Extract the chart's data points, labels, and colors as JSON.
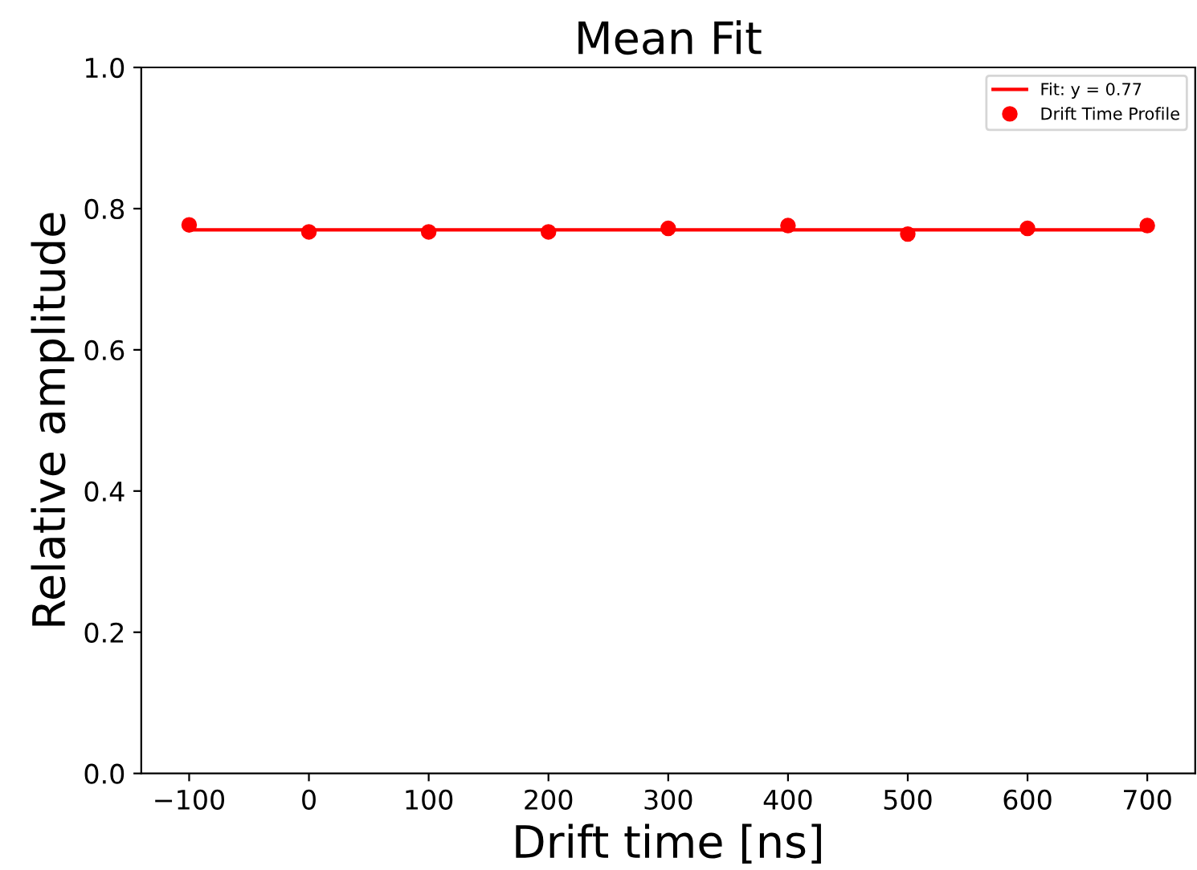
{
  "chart_data": {
    "type": "scatter",
    "title": "Mean Fit",
    "xlabel": "Drift time [ns]",
    "ylabel": "Relative amplitude",
    "xlim": [
      -140,
      740
    ],
    "xticks": [
      {
        "value": -100,
        "label": "−100"
      },
      0,
      100,
      200,
      300,
      400,
      500,
      600,
      700
    ],
    "ylim": [
      0,
      1
    ],
    "yticks": [
      {
        "value": 0,
        "label": "0.0"
      },
      0.2,
      0.4,
      0.6,
      0.8,
      {
        "value": 1,
        "label": "1.0"
      }
    ],
    "grid": false,
    "legend": "top right",
    "series": [
      {
        "name": "Fit: y = 0.77",
        "type": "line",
        "color": "#ff0000",
        "x": [
          -100,
          700
        ],
        "values": [
          0.77,
          0.77
        ]
      },
      {
        "name": "Drift Time Profile",
        "marker": "circle",
        "color": "#ff0000",
        "x": [
          -100,
          0,
          100,
          200,
          300,
          400,
          500,
          600,
          700
        ],
        "values": [
          0.777,
          0.767,
          0.767,
          0.767,
          0.772,
          0.776,
          0.764,
          0.772,
          0.776
        ]
      }
    ]
  }
}
